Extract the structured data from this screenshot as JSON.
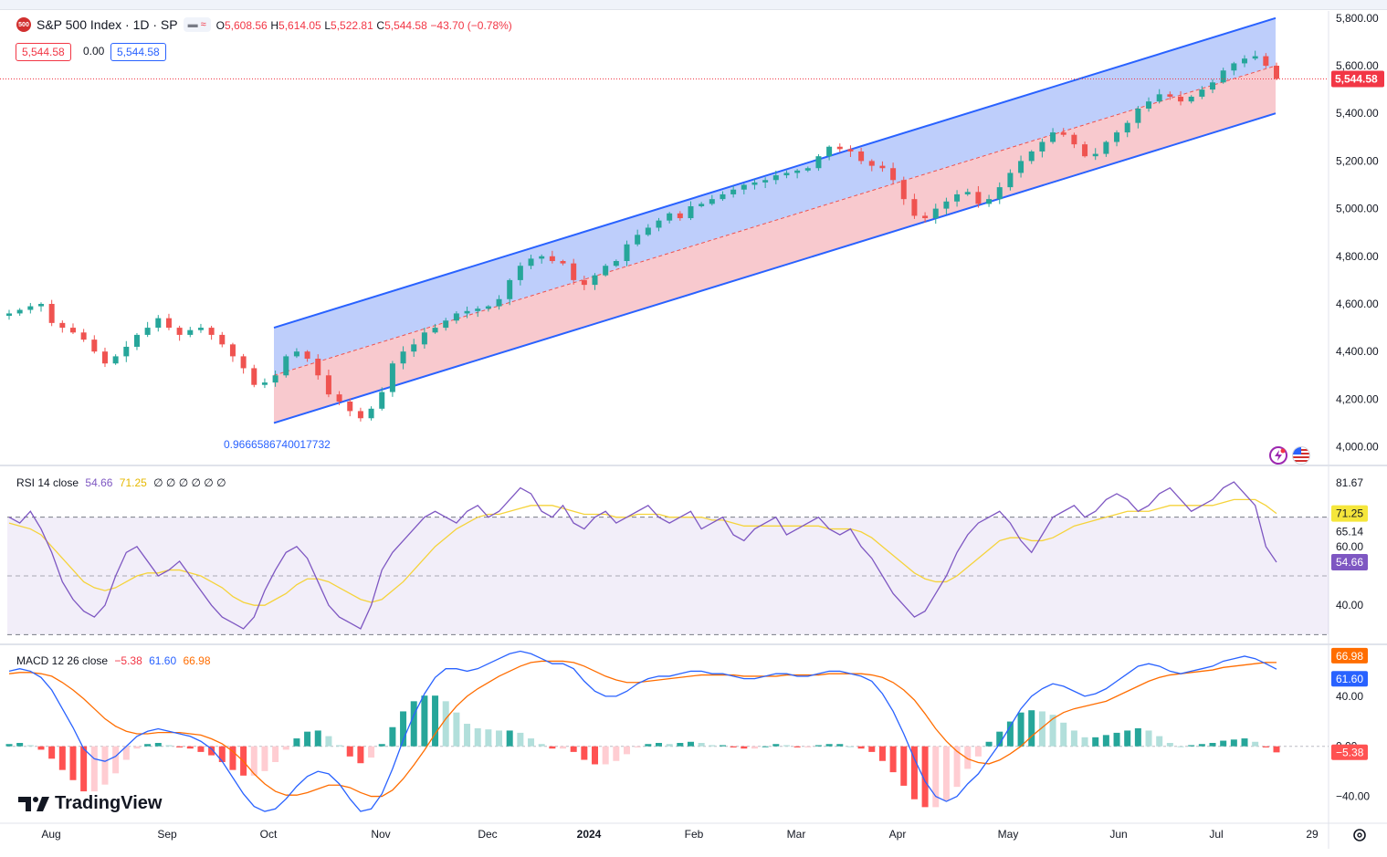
{
  "symbol": {
    "badge": "500",
    "title": "S&P 500 Index · 1D · SP",
    "change_pill": "≈"
  },
  "ohlc": {
    "o_label": "O",
    "o": "5,608.56",
    "h_label": "H",
    "h": "5,614.05",
    "l_label": "L",
    "l": "5,522.81",
    "c_label": "C",
    "c": "5,544.58",
    "change": "−43.70 (−0.78%)"
  },
  "quote": {
    "bid": "5,544.58",
    "spread": "0.00",
    "ask": "5,544.58"
  },
  "price_axis": {
    "ticks": [
      "5,800.00",
      "5,600.00",
      "5,400.00",
      "5,200.00",
      "5,000.00",
      "4,800.00",
      "4,600.00",
      "4,400.00",
      "4,200.00",
      "4,000.00"
    ],
    "last_label": "5,544.58"
  },
  "channel": {
    "label": "0.9666586740017732"
  },
  "rsi": {
    "legend": "RSI 14 close",
    "value": "54.66",
    "ma": "71.25",
    "extras": "∅ ∅ ∅ ∅ ∅ ∅",
    "axis_ticks": [
      "81.67",
      "65.14",
      "60.00",
      "40.00"
    ],
    "ma_label": "71.25",
    "value_label": "54.66"
  },
  "macd": {
    "legend": "MACD 12 26 close",
    "hist": "−5.38",
    "macd": "61.60",
    "signal": "66.98",
    "axis_ticks": [
      "40.00",
      "0.00",
      "−40.00"
    ],
    "signal_label": "66.98",
    "macd_label": "61.60",
    "hist_label": "−5.38"
  },
  "time_axis": {
    "ticks": [
      "Aug",
      "Sep",
      "Oct",
      "Nov",
      "Dec",
      "2024",
      "Feb",
      "Mar",
      "Apr",
      "May",
      "Jun",
      "Jul",
      "29"
    ]
  },
  "brand": {
    "name": "TradingView"
  },
  "colors": {
    "up": "#26a69a",
    "down": "#ef5350",
    "channel_line": "#2962ff",
    "upper_fill": "#bbcbfb",
    "lower_fill": "#f8c6cb",
    "rsi": "#7e57c2",
    "rsi_ma": "#f5d33b",
    "macd": "#2962ff",
    "signal": "#ff6d00"
  },
  "chart_data": [
    {
      "type": "candlestick",
      "title": "S&P 500 Index · 1D · SP",
      "x": [
        "Aug",
        "Sep",
        "Oct",
        "Nov",
        "Dec",
        "2024",
        "Feb",
        "Mar",
        "Apr",
        "May",
        "Jun",
        "Jul"
      ],
      "ylim": [
        3960,
        5830
      ],
      "close_path": [
        4560,
        4575,
        4590,
        4600,
        4520,
        4500,
        4480,
        4450,
        4400,
        4350,
        4380,
        4420,
        4470,
        4500,
        4540,
        4500,
        4470,
        4490,
        4500,
        4470,
        4430,
        4380,
        4330,
        4260,
        4270,
        4300,
        4380,
        4400,
        4370,
        4300,
        4220,
        4190,
        4150,
        4120,
        4160,
        4230,
        4350,
        4400,
        4430,
        4480,
        4500,
        4530,
        4560,
        4570,
        4580,
        4590,
        4620,
        4700,
        4760,
        4790,
        4800,
        4780,
        4770,
        4700,
        4680,
        4720,
        4760,
        4780,
        4850,
        4890,
        4920,
        4950,
        4980,
        4960,
        5010,
        5020,
        5040,
        5060,
        5080,
        5100,
        5110,
        5120,
        5140,
        5150,
        5160,
        5170,
        5220,
        5260,
        5250,
        5240,
        5200,
        5180,
        5170,
        5120,
        5040,
        4970,
        4960,
        5000,
        5030,
        5060,
        5070,
        5020,
        5040,
        5090,
        5150,
        5200,
        5240,
        5280,
        5320,
        5310,
        5270,
        5220,
        5230,
        5280,
        5320,
        5360,
        5420,
        5450,
        5480,
        5470,
        5450,
        5470,
        5500,
        5530,
        5580,
        5610,
        5630,
        5640,
        5600,
        5545
      ],
      "last_close": 5544.58,
      "channel": {
        "upper_start": 4500,
        "upper_end": 5800,
        "mid_start": 4300,
        "mid_end": 5600,
        "lower_start": 4100,
        "lower_end": 5400,
        "label": "0.9666586740017732"
      }
    },
    {
      "type": "line",
      "name": "RSI 14 close",
      "ylim": [
        27,
        87
      ],
      "bands": [
        30,
        70
      ],
      "series": [
        {
          "name": "RSI",
          "values": [
            70,
            68,
            72,
            66,
            58,
            48,
            42,
            38,
            36,
            40,
            50,
            58,
            60,
            55,
            50,
            52,
            55,
            50,
            45,
            40,
            36,
            34,
            32,
            36,
            45,
            52,
            58,
            60,
            56,
            48,
            40,
            36,
            34,
            32,
            40,
            52,
            58,
            62,
            66,
            70,
            72,
            70,
            68,
            72,
            74,
            70,
            72,
            76,
            80,
            78,
            72,
            70,
            74,
            68,
            66,
            70,
            72,
            68,
            70,
            72,
            74,
            70,
            68,
            70,
            72,
            66,
            68,
            70,
            64,
            62,
            66,
            68,
            70,
            64,
            66,
            68,
            70,
            66,
            64,
            66,
            60,
            56,
            50,
            44,
            40,
            36,
            38,
            44,
            50,
            58,
            64,
            68,
            70,
            72,
            68,
            62,
            58,
            64,
            70,
            72,
            74,
            70,
            72,
            76,
            78,
            76,
            72,
            74,
            78,
            80,
            76,
            72,
            74,
            76,
            80,
            82,
            78,
            74,
            60,
            54.66
          ]
        },
        {
          "name": "RSI MA",
          "values": [
            68,
            67,
            66,
            64,
            60,
            56,
            52,
            48,
            46,
            45,
            46,
            48,
            50,
            51,
            51,
            52,
            52,
            51,
            50,
            48,
            46,
            43,
            41,
            40,
            40,
            42,
            44,
            47,
            49,
            49,
            48,
            46,
            44,
            42,
            41,
            42,
            45,
            48,
            52,
            56,
            60,
            63,
            66,
            68,
            70,
            71,
            71,
            72,
            73,
            74,
            74,
            74,
            73,
            72,
            71,
            71,
            71,
            70,
            70,
            71,
            71,
            71,
            70,
            70,
            70,
            70,
            69,
            69,
            68,
            67,
            67,
            67,
            67,
            67,
            67,
            67,
            67,
            66,
            66,
            66,
            65,
            63,
            60,
            57,
            54,
            51,
            49,
            48,
            48,
            50,
            53,
            56,
            59,
            62,
            63,
            63,
            62,
            62,
            63,
            65,
            67,
            68,
            69,
            70,
            71,
            72,
            72,
            72,
            73,
            74,
            74,
            74,
            74,
            74,
            75,
            76,
            76,
            76,
            74,
            71.25
          ]
        }
      ]
    },
    {
      "type": "bar",
      "name": "MACD 12 26 close",
      "ylim": [
        -60,
        80
      ],
      "series": [
        {
          "name": "MACD",
          "values": [
            60,
            62,
            60,
            55,
            45,
            30,
            15,
            -2,
            -10,
            -12,
            -8,
            0,
            8,
            12,
            14,
            12,
            10,
            8,
            4,
            -2,
            -12,
            -25,
            -38,
            -48,
            -52,
            -50,
            -42,
            -32,
            -24,
            -20,
            -22,
            -30,
            -42,
            -52,
            -50,
            -38,
            -18,
            5,
            25,
            42,
            55,
            62,
            62,
            60,
            62,
            66,
            70,
            74,
            76,
            74,
            70,
            66,
            66,
            62,
            52,
            44,
            40,
            40,
            44,
            50,
            54,
            56,
            56,
            58,
            60,
            60,
            58,
            58,
            56,
            54,
            54,
            56,
            58,
            58,
            56,
            56,
            58,
            60,
            60,
            58,
            56,
            52,
            42,
            28,
            10,
            -10,
            -28,
            -40,
            -44,
            -40,
            -30,
            -22,
            -10,
            2,
            16,
            30,
            40,
            46,
            50,
            48,
            44,
            40,
            42,
            46,
            52,
            58,
            64,
            66,
            64,
            60,
            58,
            60,
            62,
            64,
            68,
            70,
            72,
            70,
            66,
            61.6
          ]
        },
        {
          "name": "Signal",
          "values": [
            58,
            59,
            59,
            58,
            56,
            51,
            45,
            38,
            30,
            22,
            16,
            12,
            10,
            10,
            11,
            11,
            11,
            10,
            9,
            6,
            2,
            -4,
            -12,
            -22,
            -30,
            -36,
            -39,
            -39,
            -37,
            -34,
            -31,
            -31,
            -33,
            -37,
            -40,
            -40,
            -35,
            -26,
            -15,
            -3,
            10,
            22,
            32,
            40,
            46,
            51,
            56,
            60,
            64,
            67,
            68,
            68,
            68,
            67,
            64,
            60,
            56,
            53,
            51,
            51,
            52,
            53,
            54,
            55,
            56,
            57,
            57,
            57,
            57,
            56,
            56,
            56,
            56,
            57,
            57,
            57,
            57,
            58,
            58,
            58,
            58,
            57,
            55,
            51,
            45,
            37,
            26,
            14,
            4,
            -4,
            -10,
            -13,
            -14,
            -11,
            -6,
            0,
            8,
            15,
            22,
            27,
            30,
            32,
            34,
            36,
            40,
            44,
            48,
            52,
            55,
            57,
            58,
            59,
            60,
            61,
            63,
            64,
            65,
            66,
            67,
            66.98
          ]
        }
      ]
    }
  ]
}
